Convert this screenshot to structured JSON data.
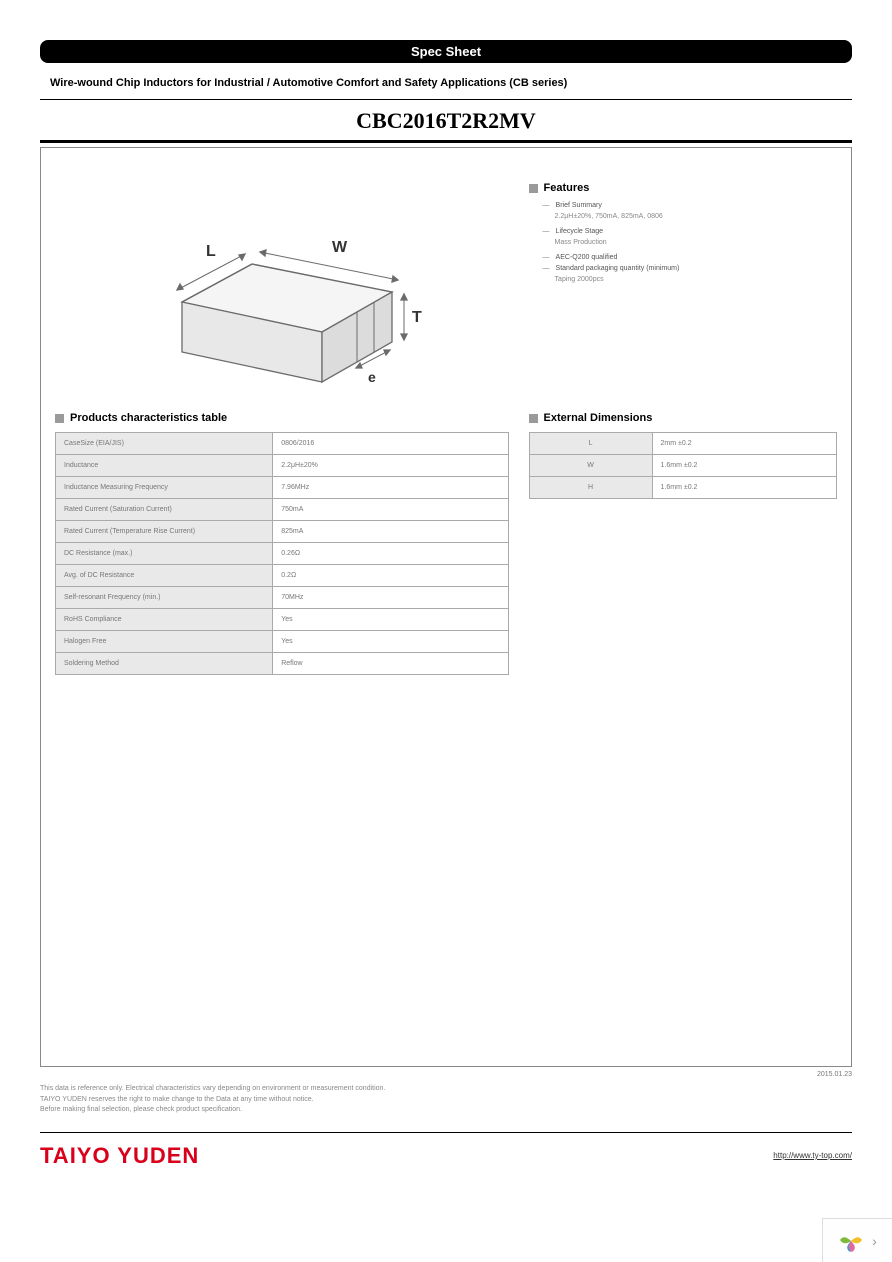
{
  "banner": "Spec Sheet",
  "subtitle": "Wire-wound Chip Inductors for Industrial / Automotive Comfort and Safety Applications (CB series)",
  "part_number": "CBC2016T2R2MV",
  "diagram": {
    "labels": {
      "L": "L",
      "W": "W",
      "T": "T",
      "e": "e"
    },
    "stroke": "#6b6b6b",
    "fill_light": "#f5f5f5",
    "fill_side": "#e2e2e2"
  },
  "features": {
    "heading": "Features",
    "items": [
      {
        "label": "Brief Summary",
        "sub": "2.2μH±20%, 750mA, 825mA, 0806"
      },
      {
        "label": "Lifecycle Stage",
        "sub": "Mass Production"
      },
      {
        "label": "AEC-Q200 qualified",
        "sub": null
      },
      {
        "label": "Standard packaging quantity (minimum)",
        "sub": "Taping 2000pcs"
      }
    ]
  },
  "char_table": {
    "heading": "Products characteristics table",
    "rows": [
      [
        "CaseSize (EIA/JIS)",
        "0806/2016"
      ],
      [
        "Inductance",
        "2.2μH±20%"
      ],
      [
        "Inductance Measuring Frequency",
        "7.96MHz"
      ],
      [
        "Rated Current (Saturation Current)",
        "750mA"
      ],
      [
        "Rated Current (Temperature Rise Current)",
        "825mA"
      ],
      [
        "DC Resistance (max.)",
        "0.26Ω"
      ],
      [
        "Avg. of DC Resistance",
        "0.2Ω"
      ],
      [
        "Self-resonant Frequency (min.)",
        "70MHz"
      ],
      [
        "RoHS Compliance",
        "Yes"
      ],
      [
        "Halogen Free",
        "Yes"
      ],
      [
        "Soldering Method",
        "Reflow"
      ]
    ]
  },
  "dim_table": {
    "heading": "External Dimensions",
    "rows": [
      [
        "L",
        "2mm ±0.2"
      ],
      [
        "W",
        "1.6mm ±0.2"
      ],
      [
        "H",
        "1.6mm ±0.2"
      ]
    ]
  },
  "date": "2015.01.23",
  "disclaimer": [
    "This data is reference only. Electrical characteristics vary depending on environment or measurement condition.",
    "TAIYO YUDEN reserves the right to make change to the Data at any time without notice.",
    "Before making final selection, please check product specification."
  ],
  "footer": {
    "brand": "TAIYO YUDEN",
    "url": "http://www.ty-top.com/"
  },
  "colors": {
    "banner_bg": "#000000",
    "banner_fg": "#ffffff",
    "brand": "#d9001b",
    "table_key_bg": "#e9e9e9",
    "border": "#aaaaaa"
  }
}
